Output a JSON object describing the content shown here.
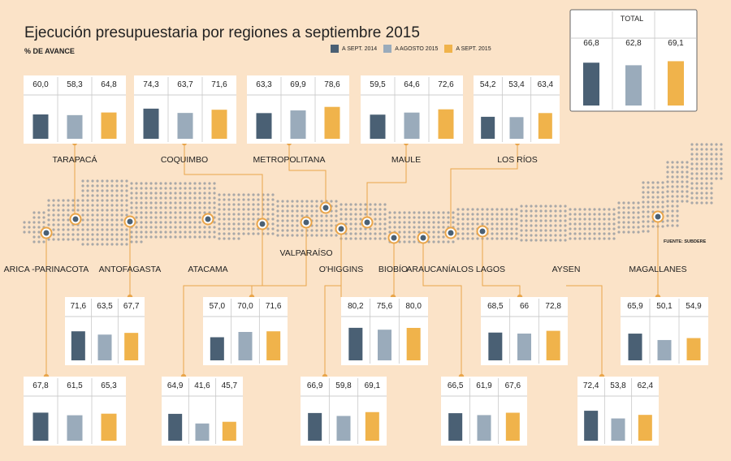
{
  "title": "Ejecución presupuestaria por regiones a septiembre 2015",
  "subtitle": "% DE AVANCE",
  "source": "FUENTE: SUBDERE",
  "colors": {
    "background": "#fbe3c8",
    "sept2014": "#4a6074",
    "agosto2015": "#9aabbb",
    "sept2015": "#f0b34b",
    "connector": "#e9a54a",
    "dot": "#a8a8a8"
  },
  "legend": [
    "A SEPT. 2014",
    "A AGOSTO 2015",
    "A SEPT. 2015"
  ],
  "total": {
    "label": "TOTAL",
    "values": [
      "66,8",
      "62,8",
      "69,1"
    ]
  },
  "chart_data": {
    "type": "bar",
    "title": "Ejecución presupuestaria por regiones a septiembre 2015",
    "ylabel": "% DE AVANCE",
    "ylim": [
      0,
      100
    ],
    "series_names": [
      "A SEPT. 2014",
      "A AGOSTO 2015",
      "A SEPT. 2015"
    ],
    "total": {
      "label": "TOTAL",
      "values": [
        66.8,
        62.8,
        69.1
      ]
    },
    "regions": [
      {
        "name": "ARICA -PARINACOTA",
        "values": [
          67.8,
          61.5,
          65.3
        ],
        "labels": [
          "67,8",
          "61,5",
          "65,3"
        ]
      },
      {
        "name": "TARAPACÁ",
        "values": [
          60.0,
          58.3,
          64.8
        ],
        "labels": [
          "60,0",
          "58,3",
          "64,8"
        ]
      },
      {
        "name": "ANTOFAGASTA",
        "values": [
          71.6,
          63.5,
          67.7
        ],
        "labels": [
          "71,6",
          "63,5",
          "67,7"
        ]
      },
      {
        "name": "ATACAMA",
        "values": [
          64.9,
          41.6,
          45.7
        ],
        "labels": [
          "64,9",
          "41,6",
          "45,7"
        ]
      },
      {
        "name": "COQUIMBO",
        "values": [
          74.3,
          63.7,
          71.6
        ],
        "labels": [
          "74,3",
          "63,7",
          "71,6"
        ]
      },
      {
        "name": "VALPARAÍSO",
        "values": [
          57.0,
          70.0,
          71.6
        ],
        "labels": [
          "57,0",
          "70,0",
          "71,6"
        ]
      },
      {
        "name": "METROPOLITANA",
        "values": [
          63.3,
          69.9,
          78.6
        ],
        "labels": [
          "63,3",
          "69,9",
          "78,6"
        ]
      },
      {
        "name": "O'HIGGINS",
        "values": [
          66.9,
          59.8,
          69.1
        ],
        "labels": [
          "66,9",
          "59,8",
          "69,1"
        ]
      },
      {
        "name": "MAULE",
        "values": [
          59.5,
          64.6,
          72.6
        ],
        "labels": [
          "59,5",
          "64,6",
          "72,6"
        ]
      },
      {
        "name": "BIOBÍO",
        "values": [
          80.2,
          75.6,
          80.0
        ],
        "labels": [
          "80,2",
          "75,6",
          "80,0"
        ]
      },
      {
        "name": "ARAUCANÍA",
        "values": [
          66.5,
          61.9,
          67.6
        ],
        "labels": [
          "66,5",
          "61,9",
          "67,6"
        ]
      },
      {
        "name": "LOS RÍOS",
        "values": [
          54.2,
          53.4,
          63.4
        ],
        "labels": [
          "54,2",
          "53,4",
          "63,4"
        ]
      },
      {
        "name": "LOS LAGOS",
        "values": [
          68.5,
          66.0,
          72.8
        ],
        "labels": [
          "68,5",
          "66",
          "72,8"
        ]
      },
      {
        "name": "AYSEN",
        "values": [
          72.4,
          53.8,
          62.4
        ],
        "labels": [
          "72,4",
          "53,8",
          "62,4"
        ]
      },
      {
        "name": "MAGALLANES",
        "values": [
          65.9,
          50.1,
          54.9
        ],
        "labels": [
          "65,9",
          "50,1",
          "54,9"
        ]
      }
    ]
  }
}
